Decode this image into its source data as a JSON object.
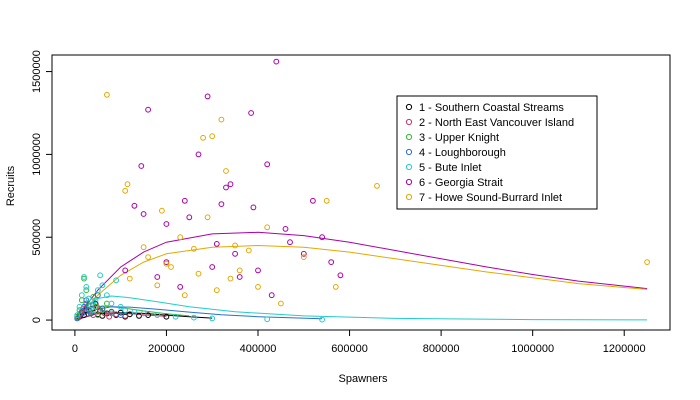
{
  "chart_data": {
    "type": "scatter",
    "title": "",
    "xlabel": "Spawners",
    "ylabel": "Recruits",
    "xlim": [
      -50000,
      1300000
    ],
    "ylim": [
      -60000,
      1600000
    ],
    "x_ticks": [
      0,
      200000,
      400000,
      600000,
      800000,
      1000000,
      1200000
    ],
    "x_tick_labels": [
      "0",
      "200000",
      "400000",
      "600000",
      "800000",
      "1000000",
      "1200000"
    ],
    "y_ticks": [
      0,
      500000,
      1000000,
      1500000
    ],
    "y_tick_labels": [
      "0",
      "500000",
      "1000000",
      "1500000"
    ],
    "grid": false,
    "legend_position": "top-right",
    "series": [
      {
        "name": "1 - Southern Coastal Streams",
        "color": "#000000",
        "points": [
          [
            10000,
            20000
          ],
          [
            15000,
            45000
          ],
          [
            20000,
            30000
          ],
          [
            25000,
            60000
          ],
          [
            30000,
            90000
          ],
          [
            35000,
            40000
          ],
          [
            40000,
            70000
          ],
          [
            45000,
            100000
          ],
          [
            50000,
            35000
          ],
          [
            55000,
            55000
          ],
          [
            60000,
            25000
          ],
          [
            70000,
            40000
          ],
          [
            80000,
            50000
          ],
          [
            90000,
            30000
          ],
          [
            100000,
            45000
          ],
          [
            110000,
            20000
          ],
          [
            120000,
            35000
          ],
          [
            140000,
            25000
          ],
          [
            160000,
            30000
          ],
          [
            200000,
            20000
          ]
        ],
        "curve": [
          [
            0,
            0
          ],
          [
            50000,
            40000
          ],
          [
            100000,
            45000
          ],
          [
            150000,
            40000
          ],
          [
            200000,
            30000
          ],
          [
            250000,
            20000
          ],
          [
            300000,
            12000
          ]
        ]
      },
      {
        "name": "2 - North East Vancouver Island",
        "color": "#cc3366",
        "points": [
          [
            8000,
            15000
          ],
          [
            12000,
            40000
          ],
          [
            18000,
            70000
          ],
          [
            25000,
            100000
          ],
          [
            32000,
            55000
          ],
          [
            40000,
            30000
          ],
          [
            48000,
            80000
          ],
          [
            55000,
            60000
          ],
          [
            65000,
            40000
          ],
          [
            75000,
            20000
          ],
          [
            90000,
            35000
          ],
          [
            110000,
            25000
          ]
        ],
        "curve": [
          [
            0,
            0
          ],
          [
            40000,
            35000
          ],
          [
            80000,
            42000
          ],
          [
            120000,
            38000
          ],
          [
            160000,
            30000
          ],
          [
            200000,
            22000
          ]
        ]
      },
      {
        "name": "3 - Upper Knight",
        "color": "#33bb33",
        "points": [
          [
            5000,
            20000
          ],
          [
            10000,
            60000
          ],
          [
            15000,
            120000
          ],
          [
            20000,
            250000
          ],
          [
            25000,
            180000
          ],
          [
            30000,
            90000
          ],
          [
            35000,
            50000
          ],
          [
            40000,
            140000
          ],
          [
            45000,
            80000
          ],
          [
            50000,
            30000
          ],
          [
            60000,
            60000
          ],
          [
            70000,
            100000
          ],
          [
            80000,
            40000
          ]
        ],
        "curve": [
          [
            0,
            0
          ],
          [
            30000,
            70000
          ],
          [
            60000,
            85000
          ],
          [
            100000,
            75000
          ],
          [
            150000,
            55000
          ],
          [
            200000,
            38000
          ],
          [
            250000,
            25000
          ]
        ]
      },
      {
        "name": "4 - Loughborough",
        "color": "#2a6fd0",
        "points": [
          [
            5000,
            10000
          ],
          [
            10000,
            30000
          ],
          [
            15000,
            50000
          ],
          [
            20000,
            80000
          ],
          [
            25000,
            120000
          ],
          [
            30000,
            60000
          ],
          [
            35000,
            40000
          ],
          [
            40000,
            90000
          ],
          [
            50000,
            150000
          ],
          [
            60000,
            70000
          ],
          [
            80000,
            50000
          ],
          [
            100000,
            30000
          ]
        ],
        "curve": [
          [
            0,
            0
          ],
          [
            40000,
            60000
          ],
          [
            80000,
            80000
          ],
          [
            120000,
            78000
          ],
          [
            180000,
            65000
          ],
          [
            250000,
            48000
          ],
          [
            320000,
            32000
          ],
          [
            400000,
            20000
          ],
          [
            540000,
            8000
          ]
        ]
      },
      {
        "name": "5 - Bute Inlet",
        "color": "#22cccc",
        "points": [
          [
            5000,
            30000
          ],
          [
            10000,
            80000
          ],
          [
            15000,
            150000
          ],
          [
            20000,
            260000
          ],
          [
            25000,
            200000
          ],
          [
            30000,
            130000
          ],
          [
            35000,
            90000
          ],
          [
            40000,
            60000
          ],
          [
            45000,
            120000
          ],
          [
            50000,
            180000
          ],
          [
            55000,
            270000
          ],
          [
            60000,
            210000
          ],
          [
            70000,
            150000
          ],
          [
            80000,
            100000
          ],
          [
            90000,
            240000
          ],
          [
            100000,
            80000
          ],
          [
            110000,
            60000
          ],
          [
            130000,
            50000
          ],
          [
            150000,
            40000
          ],
          [
            180000,
            30000
          ],
          [
            220000,
            20000
          ],
          [
            260000,
            15000
          ],
          [
            300000,
            10000
          ],
          [
            420000,
            5000
          ],
          [
            540000,
            3000
          ]
        ],
        "curve": [
          [
            0,
            0
          ],
          [
            20000,
            80000
          ],
          [
            50000,
            130000
          ],
          [
            80000,
            145000
          ],
          [
            120000,
            135000
          ],
          [
            180000,
            110000
          ],
          [
            250000,
            80000
          ],
          [
            350000,
            50000
          ],
          [
            500000,
            25000
          ],
          [
            700000,
            10000
          ],
          [
            1000000,
            3000
          ],
          [
            1250000,
            1000
          ]
        ]
      },
      {
        "name": "6 - Georgia Strait",
        "color": "#aa00aa",
        "points": [
          [
            160000,
            1270000
          ],
          [
            240000,
            720000
          ],
          [
            270000,
            1000000
          ],
          [
            290000,
            1350000
          ],
          [
            320000,
            700000
          ],
          [
            340000,
            820000
          ],
          [
            360000,
            260000
          ],
          [
            385000,
            1250000
          ],
          [
            390000,
            680000
          ],
          [
            420000,
            940000
          ],
          [
            440000,
            1560000
          ],
          [
            470000,
            470000
          ],
          [
            500000,
            400000
          ],
          [
            520000,
            720000
          ],
          [
            540000,
            500000
          ],
          [
            560000,
            350000
          ],
          [
            580000,
            270000
          ],
          [
            130000,
            690000
          ],
          [
            145000,
            930000
          ],
          [
            150000,
            640000
          ],
          [
            110000,
            300000
          ],
          [
            180000,
            260000
          ],
          [
            200000,
            350000
          ],
          [
            230000,
            200000
          ],
          [
            250000,
            620000
          ],
          [
            300000,
            320000
          ],
          [
            330000,
            800000
          ],
          [
            400000,
            300000
          ],
          [
            430000,
            150000
          ],
          [
            460000,
            550000
          ],
          [
            200000,
            580000
          ],
          [
            310000,
            460000
          ],
          [
            350000,
            400000
          ]
        ],
        "curve": [
          [
            0,
            0
          ],
          [
            50000,
            180000
          ],
          [
            100000,
            320000
          ],
          [
            150000,
            410000
          ],
          [
            200000,
            470000
          ],
          [
            300000,
            520000
          ],
          [
            400000,
            530000
          ],
          [
            500000,
            510000
          ],
          [
            600000,
            470000
          ],
          [
            700000,
            420000
          ],
          [
            800000,
            370000
          ],
          [
            900000,
            320000
          ],
          [
            1000000,
            275000
          ],
          [
            1100000,
            235000
          ],
          [
            1250000,
            190000
          ]
        ]
      },
      {
        "name": "7 - Howe Sound-Burrard Inlet",
        "color": "#e6a800",
        "points": [
          [
            70000,
            1360000
          ],
          [
            110000,
            780000
          ],
          [
            115000,
            820000
          ],
          [
            150000,
            440000
          ],
          [
            190000,
            660000
          ],
          [
            200000,
            340000
          ],
          [
            230000,
            500000
          ],
          [
            260000,
            430000
          ],
          [
            280000,
            1100000
          ],
          [
            300000,
            1110000
          ],
          [
            320000,
            1210000
          ],
          [
            330000,
            900000
          ],
          [
            350000,
            450000
          ],
          [
            360000,
            300000
          ],
          [
            400000,
            200000
          ],
          [
            450000,
            100000
          ],
          [
            500000,
            380000
          ],
          [
            550000,
            720000
          ],
          [
            570000,
            200000
          ],
          [
            660000,
            810000
          ],
          [
            1250000,
            350000
          ],
          [
            120000,
            250000
          ],
          [
            160000,
            380000
          ],
          [
            180000,
            210000
          ],
          [
            210000,
            320000
          ],
          [
            240000,
            150000
          ],
          [
            270000,
            280000
          ],
          [
            290000,
            620000
          ],
          [
            310000,
            180000
          ],
          [
            340000,
            250000
          ],
          [
            380000,
            420000
          ],
          [
            420000,
            560000
          ]
        ],
        "curve": [
          [
            0,
            0
          ],
          [
            50000,
            150000
          ],
          [
            100000,
            270000
          ],
          [
            150000,
            350000
          ],
          [
            200000,
            400000
          ],
          [
            300000,
            440000
          ],
          [
            400000,
            450000
          ],
          [
            500000,
            440000
          ],
          [
            600000,
            410000
          ],
          [
            700000,
            370000
          ],
          [
            800000,
            330000
          ],
          [
            900000,
            290000
          ],
          [
            1000000,
            255000
          ],
          [
            1100000,
            220000
          ],
          [
            1250000,
            185000
          ]
        ]
      }
    ]
  }
}
